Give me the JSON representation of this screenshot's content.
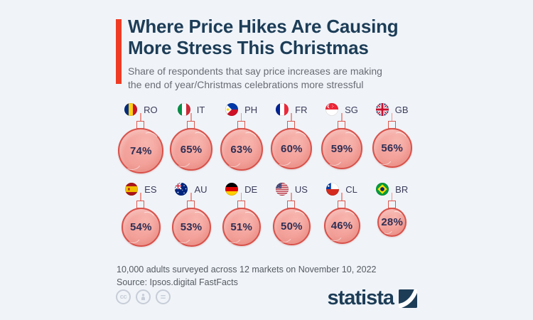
{
  "header": {
    "title_line1": "Where Price Hikes Are Causing",
    "title_line2": "More Stress This Christmas",
    "subtitle_line1": "Share of respondents that say price increases are making",
    "subtitle_line2": "the end of year/Christmas celebrations more stressful"
  },
  "chart_data": {
    "type": "bar",
    "title": "Where Price Hikes Are Causing More Stress This Christmas",
    "subtitle": "Share of respondents that say price increases are making the end of year/Christmas celebrations more stressful",
    "unit": "%",
    "categories": [
      "RO",
      "IT",
      "PH",
      "FR",
      "SG",
      "GB",
      "ES",
      "AU",
      "DE",
      "US",
      "CL",
      "BR"
    ],
    "values": [
      74,
      65,
      63,
      60,
      59,
      56,
      54,
      53,
      51,
      50,
      46,
      28
    ],
    "layout": {
      "rows": 2,
      "per_row": 6,
      "marker": "christmas-ornament",
      "marker_size_scaled_by_value": true,
      "legend": "none",
      "grid": "off"
    }
  },
  "footer": {
    "note": "10,000 adults surveyed across 12 markets on November 10, 2022",
    "source": "Source: Ipsos.digital FastFacts",
    "cc_label": "cc",
    "equal_label": "=",
    "license_icons": [
      "cc-icon",
      "attribution-person-icon",
      "equal-icon"
    ]
  },
  "branding": {
    "logo_text": "statista"
  },
  "colors": {
    "background": "#f0f4f9",
    "accent_red": "#ef3b24",
    "title_navy": "#1d3d57",
    "subtitle_gray": "#696c73",
    "ornament_fill": "#f4a49d",
    "ornament_border": "#d8514a",
    "value_navy": "#2f2f55",
    "footer_gray": "#555a61",
    "license_gray": "#c7cdd7"
  }
}
